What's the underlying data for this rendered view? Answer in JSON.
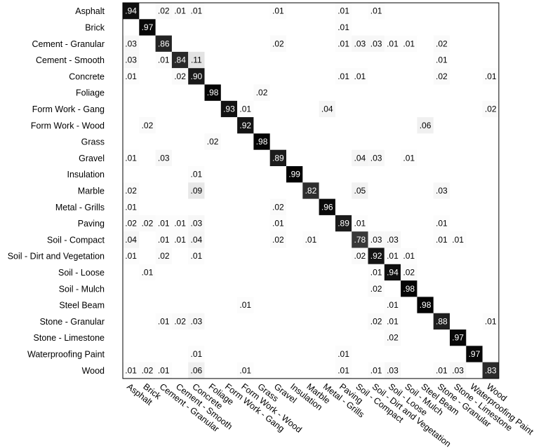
{
  "chart_data": {
    "type": "heatmap",
    "title": "",
    "xlabel": "",
    "ylabel": "",
    "grid": false,
    "legend": "none",
    "colors": {
      "background": "#ffffff",
      "frame": "#000000",
      "high": "#000000",
      "low": "#ffffff"
    },
    "rows": [
      "Asphalt",
      "Brick",
      "Cement - Granular",
      "Cement - Smooth",
      "Concrete",
      "Foliage",
      "Form Work - Gang",
      "Form Work - Wood",
      "Grass",
      "Gravel",
      "Insulation",
      "Marble",
      "Metal - Grills",
      "Paving",
      "Soil - Compact",
      "Soil - Dirt and Vegetation",
      "Soil - Loose",
      "Soil - Mulch",
      "Steel Beam",
      "Stone - Granular",
      "Stone - Limestone",
      "Waterproofing Paint",
      "Wood"
    ],
    "columns": [
      "Asphalt",
      "Brick",
      "Cement - Granular",
      "Cement - Smooth",
      "Concrete",
      "Foliage",
      "Form Work - Gang",
      "Form Work - Wood",
      "Grass",
      "Gravel",
      "Insulation",
      "Marble",
      "Metal - Grills",
      "Paving",
      "Soil - Compact",
      "Soil - Dirt and Vegetation",
      "Soil - Loose",
      "Soil - Mulch",
      "Steel Beam",
      "Stone - Granular",
      "Stone - Limestone",
      "Waterproofing Paint",
      "Wood"
    ],
    "cells": [
      {
        "r": 0,
        "c": 0,
        "v": 0.94,
        "t": ".94"
      },
      {
        "r": 0,
        "c": 2,
        "v": 0.02,
        "t": ".02"
      },
      {
        "r": 0,
        "c": 3,
        "v": 0.01,
        "t": ".01"
      },
      {
        "r": 0,
        "c": 4,
        "v": 0.01,
        "t": ".01"
      },
      {
        "r": 0,
        "c": 9,
        "v": 0.01,
        "t": ".01"
      },
      {
        "r": 0,
        "c": 13,
        "v": 0.01,
        "t": ".01"
      },
      {
        "r": 0,
        "c": 15,
        "v": 0.01,
        "t": ".01"
      },
      {
        "r": 1,
        "c": 1,
        "v": 0.97,
        "t": ".97"
      },
      {
        "r": 1,
        "c": 13,
        "v": 0.01,
        "t": ".01"
      },
      {
        "r": 2,
        "c": 0,
        "v": 0.03,
        "t": ".03"
      },
      {
        "r": 2,
        "c": 2,
        "v": 0.86,
        "t": ".86"
      },
      {
        "r": 2,
        "c": 9,
        "v": 0.02,
        "t": ".02"
      },
      {
        "r": 2,
        "c": 13,
        "v": 0.01,
        "t": ".01"
      },
      {
        "r": 2,
        "c": 14,
        "v": 0.03,
        "t": ".03"
      },
      {
        "r": 2,
        "c": 15,
        "v": 0.03,
        "t": ".03"
      },
      {
        "r": 2,
        "c": 16,
        "v": 0.01,
        "t": ".01"
      },
      {
        "r": 2,
        "c": 17,
        "v": 0.01,
        "t": ".01"
      },
      {
        "r": 2,
        "c": 19,
        "v": 0.02,
        "t": ".02"
      },
      {
        "r": 3,
        "c": 0,
        "v": 0.03,
        "t": ".03"
      },
      {
        "r": 3,
        "c": 2,
        "v": 0.01,
        "t": ".01"
      },
      {
        "r": 3,
        "c": 3,
        "v": 0.84,
        "t": ".84"
      },
      {
        "r": 3,
        "c": 4,
        "v": 0.11,
        "t": ".11"
      },
      {
        "r": 3,
        "c": 19,
        "v": 0.01,
        "t": ".01"
      },
      {
        "r": 4,
        "c": 0,
        "v": 0.01,
        "t": ".01"
      },
      {
        "r": 4,
        "c": 3,
        "v": 0.02,
        "t": ".02"
      },
      {
        "r": 4,
        "c": 4,
        "v": 0.9,
        "t": ".90"
      },
      {
        "r": 4,
        "c": 13,
        "v": 0.01,
        "t": ".01"
      },
      {
        "r": 4,
        "c": 14,
        "v": 0.01,
        "t": ".01"
      },
      {
        "r": 4,
        "c": 19,
        "v": 0.02,
        "t": ".02"
      },
      {
        "r": 4,
        "c": 22,
        "v": 0.01,
        "t": ".01"
      },
      {
        "r": 5,
        "c": 5,
        "v": 0.98,
        "t": ".98"
      },
      {
        "r": 5,
        "c": 8,
        "v": 0.02,
        "t": ".02"
      },
      {
        "r": 6,
        "c": 6,
        "v": 0.93,
        "t": ".93"
      },
      {
        "r": 6,
        "c": 7,
        "v": 0.01,
        "t": ".01"
      },
      {
        "r": 6,
        "c": 12,
        "v": 0.04,
        "t": ".04"
      },
      {
        "r": 6,
        "c": 22,
        "v": 0.02,
        "t": ".02"
      },
      {
        "r": 7,
        "c": 1,
        "v": 0.02,
        "t": ".02"
      },
      {
        "r": 7,
        "c": 7,
        "v": 0.92,
        "t": ".92"
      },
      {
        "r": 7,
        "c": 18,
        "v": 0.06,
        "t": ".06"
      },
      {
        "r": 8,
        "c": 5,
        "v": 0.02,
        "t": ".02"
      },
      {
        "r": 8,
        "c": 8,
        "v": 0.98,
        "t": ".98"
      },
      {
        "r": 9,
        "c": 0,
        "v": 0.01,
        "t": ".01"
      },
      {
        "r": 9,
        "c": 2,
        "v": 0.03,
        "t": ".03"
      },
      {
        "r": 9,
        "c": 9,
        "v": 0.89,
        "t": ".89"
      },
      {
        "r": 9,
        "c": 14,
        "v": 0.04,
        "t": ".04"
      },
      {
        "r": 9,
        "c": 15,
        "v": 0.03,
        "t": ".03"
      },
      {
        "r": 9,
        "c": 17,
        "v": 0.01,
        "t": ".01"
      },
      {
        "r": 10,
        "c": 4,
        "v": 0.01,
        "t": ".01"
      },
      {
        "r": 10,
        "c": 10,
        "v": 0.99,
        "t": ".99"
      },
      {
        "r": 11,
        "c": 0,
        "v": 0.02,
        "t": ".02"
      },
      {
        "r": 11,
        "c": 4,
        "v": 0.09,
        "t": ".09"
      },
      {
        "r": 11,
        "c": 11,
        "v": 0.82,
        "t": ".82"
      },
      {
        "r": 11,
        "c": 14,
        "v": 0.05,
        "t": ".05"
      },
      {
        "r": 11,
        "c": 19,
        "v": 0.03,
        "t": ".03"
      },
      {
        "r": 12,
        "c": 0,
        "v": 0.01,
        "t": ".01"
      },
      {
        "r": 12,
        "c": 9,
        "v": 0.02,
        "t": ".02"
      },
      {
        "r": 12,
        "c": 12,
        "v": 0.96,
        "t": ".96"
      },
      {
        "r": 13,
        "c": 0,
        "v": 0.02,
        "t": ".02"
      },
      {
        "r": 13,
        "c": 1,
        "v": 0.02,
        "t": ".02"
      },
      {
        "r": 13,
        "c": 2,
        "v": 0.01,
        "t": ".01"
      },
      {
        "r": 13,
        "c": 3,
        "v": 0.01,
        "t": ".01"
      },
      {
        "r": 13,
        "c": 4,
        "v": 0.03,
        "t": ".03"
      },
      {
        "r": 13,
        "c": 9,
        "v": 0.01,
        "t": ".01"
      },
      {
        "r": 13,
        "c": 13,
        "v": 0.89,
        "t": ".89"
      },
      {
        "r": 13,
        "c": 14,
        "v": 0.01,
        "t": ".01"
      },
      {
        "r": 13,
        "c": 19,
        "v": 0.01,
        "t": ".01"
      },
      {
        "r": 14,
        "c": 0,
        "v": 0.04,
        "t": ".04"
      },
      {
        "r": 14,
        "c": 2,
        "v": 0.01,
        "t": ".01"
      },
      {
        "r": 14,
        "c": 3,
        "v": 0.01,
        "t": ".01"
      },
      {
        "r": 14,
        "c": 4,
        "v": 0.04,
        "t": ".04"
      },
      {
        "r": 14,
        "c": 9,
        "v": 0.02,
        "t": ".02"
      },
      {
        "r": 14,
        "c": 11,
        "v": 0.01,
        "t": ".01"
      },
      {
        "r": 14,
        "c": 14,
        "v": 0.78,
        "t": ".78"
      },
      {
        "r": 14,
        "c": 15,
        "v": 0.03,
        "t": ".03"
      },
      {
        "r": 14,
        "c": 16,
        "v": 0.03,
        "t": ".03"
      },
      {
        "r": 14,
        "c": 19,
        "v": 0.01,
        "t": ".01"
      },
      {
        "r": 14,
        "c": 20,
        "v": 0.01,
        "t": ".01"
      },
      {
        "r": 15,
        "c": 0,
        "v": 0.01,
        "t": ".01"
      },
      {
        "r": 15,
        "c": 2,
        "v": 0.02,
        "t": ".02"
      },
      {
        "r": 15,
        "c": 4,
        "v": 0.01,
        "t": ".01"
      },
      {
        "r": 15,
        "c": 14,
        "v": 0.02,
        "t": ".02"
      },
      {
        "r": 15,
        "c": 15,
        "v": 0.92,
        "t": ".92"
      },
      {
        "r": 15,
        "c": 16,
        "v": 0.01,
        "t": ".01"
      },
      {
        "r": 15,
        "c": 17,
        "v": 0.01,
        "t": ".01"
      },
      {
        "r": 16,
        "c": 1,
        "v": 0.01,
        "t": ".01"
      },
      {
        "r": 16,
        "c": 15,
        "v": 0.01,
        "t": ".01"
      },
      {
        "r": 16,
        "c": 16,
        "v": 0.94,
        "t": ".94"
      },
      {
        "r": 16,
        "c": 17,
        "v": 0.02,
        "t": ".02"
      },
      {
        "r": 17,
        "c": 15,
        "v": 0.02,
        "t": ".02"
      },
      {
        "r": 17,
        "c": 17,
        "v": 0.98,
        "t": ".98"
      },
      {
        "r": 18,
        "c": 7,
        "v": 0.01,
        "t": ".01"
      },
      {
        "r": 18,
        "c": 16,
        "v": 0.01,
        "t": ".01"
      },
      {
        "r": 18,
        "c": 18,
        "v": 0.98,
        "t": ".98"
      },
      {
        "r": 19,
        "c": 2,
        "v": 0.01,
        "t": ".01"
      },
      {
        "r": 19,
        "c": 3,
        "v": 0.02,
        "t": ".02"
      },
      {
        "r": 19,
        "c": 4,
        "v": 0.03,
        "t": ".03"
      },
      {
        "r": 19,
        "c": 15,
        "v": 0.02,
        "t": ".02"
      },
      {
        "r": 19,
        "c": 16,
        "v": 0.01,
        "t": ".01"
      },
      {
        "r": 19,
        "c": 19,
        "v": 0.88,
        "t": ".88"
      },
      {
        "r": 19,
        "c": 22,
        "v": 0.01,
        "t": ".01"
      },
      {
        "r": 20,
        "c": 16,
        "v": 0.02,
        "t": ".02"
      },
      {
        "r": 20,
        "c": 20,
        "v": 0.97,
        "t": ".97"
      },
      {
        "r": 21,
        "c": 4,
        "v": 0.01,
        "t": ".01"
      },
      {
        "r": 21,
        "c": 13,
        "v": 0.01,
        "t": ".01"
      },
      {
        "r": 21,
        "c": 21,
        "v": 0.97,
        "t": ".97"
      },
      {
        "r": 22,
        "c": 0,
        "v": 0.01,
        "t": ".01"
      },
      {
        "r": 22,
        "c": 1,
        "v": 0.02,
        "t": ".02"
      },
      {
        "r": 22,
        "c": 2,
        "v": 0.01,
        "t": ".01"
      },
      {
        "r": 22,
        "c": 4,
        "v": 0.06,
        "t": ".06"
      },
      {
        "r": 22,
        "c": 7,
        "v": 0.01,
        "t": ".01"
      },
      {
        "r": 22,
        "c": 13,
        "v": 0.01,
        "t": ".01"
      },
      {
        "r": 22,
        "c": 15,
        "v": 0.01,
        "t": ".01"
      },
      {
        "r": 22,
        "c": 16,
        "v": 0.03,
        "t": ".03"
      },
      {
        "r": 22,
        "c": 19,
        "v": 0.01,
        "t": ".01"
      },
      {
        "r": 22,
        "c": 20,
        "v": 0.03,
        "t": ".03"
      },
      {
        "r": 22,
        "c": 22,
        "v": 0.83,
        "t": ".83"
      }
    ]
  }
}
